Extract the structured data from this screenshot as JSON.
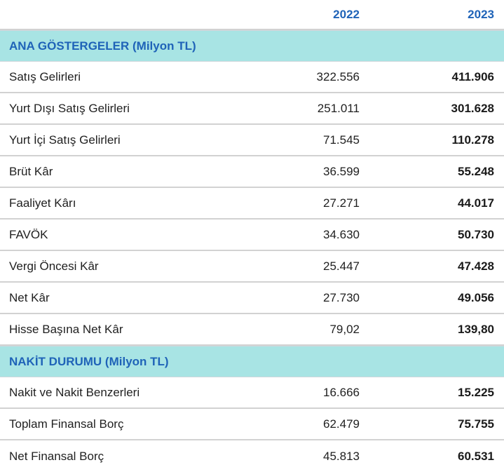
{
  "years": {
    "y2022": "2022",
    "y2023": "2023"
  },
  "sections": [
    {
      "title": "ANA GÖSTERGELER (Milyon TL)",
      "rows": [
        {
          "label": "Satış Gelirleri",
          "v2022": "322.556",
          "v2023": "411.906"
        },
        {
          "label": "Yurt Dışı Satış Gelirleri",
          "v2022": "251.011",
          "v2023": "301.628"
        },
        {
          "label": "Yurt İçi Satış Gelirleri",
          "v2022": "71.545",
          "v2023": "110.278"
        },
        {
          "label": "Brüt Kâr",
          "v2022": "36.599",
          "v2023": "55.248"
        },
        {
          "label": "Faaliyet Kârı",
          "v2022": "27.271",
          "v2023": "44.017"
        },
        {
          "label": "FAVÖK",
          "v2022": "34.630",
          "v2023": "50.730"
        },
        {
          "label": "Vergi Öncesi Kâr",
          "v2022": "25.447",
          "v2023": "47.428"
        },
        {
          "label": "Net Kâr",
          "v2022": "27.730",
          "v2023": "49.056"
        },
        {
          "label": "Hisse Başına Net Kâr",
          "v2022": "79,02",
          "v2023": "139,80"
        }
      ]
    },
    {
      "title": "NAKİT DURUMU (Milyon TL)",
      "rows": [
        {
          "label": "Nakit ve Nakit Benzerleri",
          "v2022": "16.666",
          "v2023": "15.225"
        },
        {
          "label": "Toplam Finansal Borç",
          "v2022": "62.479",
          "v2023": "75.755"
        },
        {
          "label": "Net Finansal Borç",
          "v2022": "45.813",
          "v2023": "60.531"
        }
      ]
    }
  ],
  "colors": {
    "header_text": "#1f63b8",
    "section_bg": "#a8e4e4",
    "divider": "#d2d2d2"
  }
}
